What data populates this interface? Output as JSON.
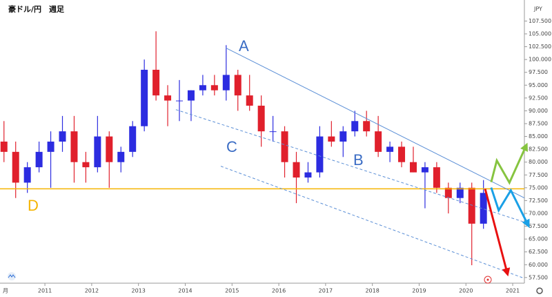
{
  "chart_data": {
    "type": "candlestick",
    "title": "豪ドル/円　週足",
    "currency": "JPY",
    "x_start_label": "月",
    "up_color": "#2c2ce0",
    "down_color": "#e0202c",
    "xlim": [
      2010.04,
      2021.25
    ],
    "xticks": [
      2011,
      2012,
      2013,
      2014,
      2015,
      2016,
      2017,
      2018,
      2019,
      2020,
      2021
    ],
    "ylim": [
      56.4,
      111.6
    ],
    "yticks": [
      {
        "value": 57.5,
        "label": "57.500"
      },
      {
        "value": 60,
        "label": "60.000"
      },
      {
        "value": 62.5,
        "label": "62.500"
      },
      {
        "value": 65,
        "label": "65.000"
      },
      {
        "value": 67.5,
        "label": "67.500"
      },
      {
        "value": 70,
        "label": "70.000"
      },
      {
        "value": 72.5,
        "label": "72.500"
      },
      {
        "value": 75,
        "label": "75.000"
      },
      {
        "value": 77.5,
        "label": "77.500"
      },
      {
        "value": 80,
        "label": "80.000"
      },
      {
        "value": 82.5,
        "label": "82.500"
      },
      {
        "value": 85,
        "label": "85.000"
      },
      {
        "value": 87.5,
        "label": "87.500"
      },
      {
        "value": 90,
        "label": "90.000"
      },
      {
        "value": 92.5,
        "label": "92.500"
      },
      {
        "value": 95,
        "label": "95.000"
      },
      {
        "value": 97.5,
        "label": "97.500"
      },
      {
        "value": 100,
        "label": "100.000"
      },
      {
        "value": 102.5,
        "label": "102.500"
      },
      {
        "value": 105,
        "label": "105.000"
      },
      {
        "value": 107.5,
        "label": "107.500"
      }
    ],
    "x": [
      2010.125,
      2010.375,
      2010.625,
      2010.875,
      2011.125,
      2011.375,
      2011.625,
      2011.875,
      2012.125,
      2012.375,
      2012.625,
      2012.875,
      2013.125,
      2013.375,
      2013.625,
      2013.875,
      2014.125,
      2014.375,
      2014.625,
      2014.875,
      2015.125,
      2015.375,
      2015.625,
      2015.875,
      2016.125,
      2016.375,
      2016.625,
      2016.875,
      2017.125,
      2017.375,
      2017.625,
      2017.875,
      2018.125,
      2018.375,
      2018.625,
      2018.875,
      2019.125,
      2019.375,
      2019.625,
      2019.875,
      2020.125,
      2020.375
    ],
    "open": [
      84,
      82,
      76,
      79,
      82,
      84,
      86,
      80,
      79,
      85,
      80,
      82,
      87,
      98,
      93,
      92,
      92,
      94,
      95,
      94,
      97,
      93,
      91,
      86,
      86,
      80,
      77,
      78,
      85,
      84,
      86,
      88,
      86,
      82,
      83,
      80,
      78,
      79,
      75,
      73,
      75,
      68
    ],
    "high": [
      88,
      84,
      80,
      84,
      86,
      89,
      89,
      82,
      89,
      86,
      83,
      88,
      100,
      105.5,
      95,
      96,
      94,
      97,
      97,
      102.8,
      98,
      97,
      93,
      89,
      87,
      82,
      80,
      87,
      88,
      87,
      90,
      90,
      89,
      84,
      84,
      83,
      80,
      80,
      76,
      76,
      76,
      76.5
    ],
    "low": [
      80,
      73,
      74,
      78,
      75,
      82,
      76,
      76,
      78,
      75,
      78,
      81,
      86,
      92,
      87,
      88,
      88,
      93,
      93,
      92,
      90,
      90,
      83,
      84,
      77,
      72,
      76,
      77,
      83,
      81,
      85,
      85,
      81,
      80,
      79,
      78,
      71,
      74,
      70,
      72,
      59.9,
      67
    ],
    "close": [
      82,
      76,
      79,
      82,
      84,
      86,
      80,
      79,
      85,
      80,
      82,
      87,
      98,
      93,
      92,
      92,
      94,
      95,
      94,
      97,
      93,
      91,
      86,
      86,
      80,
      77,
      78,
      85,
      84,
      86,
      88,
      86,
      82,
      83,
      80,
      78,
      79,
      75,
      73,
      75,
      68,
      74
    ],
    "annotations": [
      "A",
      "B",
      "C",
      "D"
    ],
    "trend_lines": [
      {
        "color": "#5b8fd6",
        "dashed": false,
        "x": [
          2014.87,
          2021.32
        ],
        "y": [
          102.25,
          72.7
        ]
      },
      {
        "color": "#5b8fd6",
        "dashed": true,
        "x": [
          2013.8,
          2021.32
        ],
        "y": [
          90.23,
          68.1
        ]
      },
      {
        "color": "#5b8fd6",
        "dashed": true,
        "x": [
          2014.76,
          2021.32
        ],
        "y": [
          79.2,
          57.1
        ]
      }
    ],
    "horizontal_line": {
      "y": 74.8,
      "color": "#f5b400"
    },
    "arrows": [
      {
        "color": "#e81010",
        "x": [
          2020.41,
          2020.88
        ],
        "y": [
          74.8,
          58.5
        ]
      },
      {
        "color": "#86c440",
        "x": [
          2020.54,
          2020.66,
          2020.93,
          2021.28
        ],
        "y": [
          76.1,
          80.3,
          76.0,
          83.05
        ]
      },
      {
        "color": "#1aa0e6",
        "x": [
          2020.54,
          2020.7,
          2020.96,
          2021.32
        ],
        "y": [
          75.04,
          70.6,
          74.5,
          67.9
        ]
      }
    ]
  }
}
